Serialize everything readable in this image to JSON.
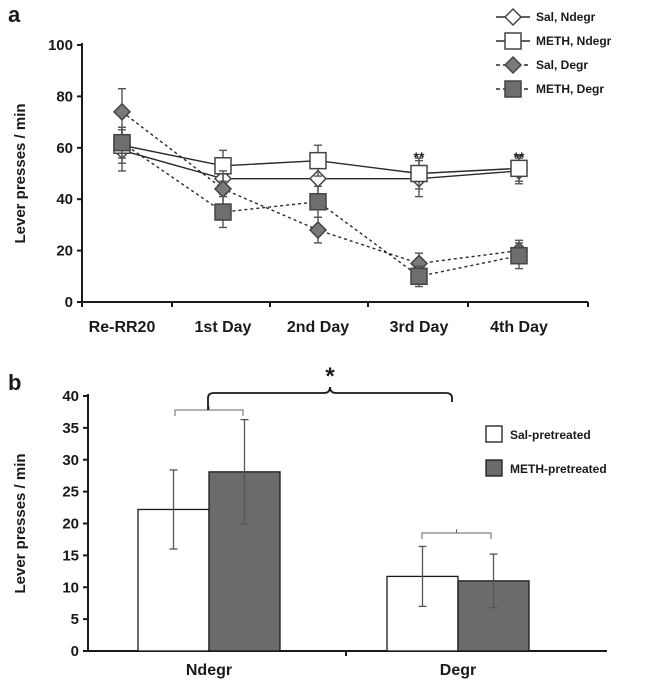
{
  "chart_data": [
    {
      "panel": "a",
      "type": "line",
      "ylabel": "Lever presses / min",
      "ylim": [
        0,
        100
      ],
      "yticks": [
        0,
        20,
        40,
        60,
        80,
        100
      ],
      "categories": [
        "Re-RR20",
        "1st Day",
        "2nd Day",
        "3rd Day",
        "4th Day"
      ],
      "legend_position": "top-right",
      "series": [
        {
          "name": "Sal, Ndegr",
          "marker": "diamond",
          "fill": "#ffffff",
          "line": "solid",
          "values": [
            59,
            48,
            48,
            48,
            51
          ],
          "errors": [
            8,
            6,
            6,
            7,
            5
          ]
        },
        {
          "name": "METH, Ndegr",
          "marker": "square",
          "fill": "#ffffff",
          "line": "solid",
          "values": [
            61,
            53,
            55,
            50,
            52
          ],
          "errors": [
            7,
            6,
            6,
            6,
            5
          ]
        },
        {
          "name": "Sal, Degr",
          "marker": "diamond",
          "fill": "#7a7a7a",
          "line": "dashed",
          "values": [
            74,
            44,
            28,
            15,
            20
          ],
          "errors": [
            9,
            7,
            5,
            4,
            4
          ]
        },
        {
          "name": "METH, Degr",
          "marker": "square",
          "fill": "#6e6e6e",
          "line": "dashed",
          "values": [
            62,
            35,
            39,
            10,
            18
          ],
          "errors": [
            6,
            6,
            6,
            4,
            5
          ]
        }
      ],
      "annotations": [
        {
          "category": "3rd Day",
          "text": "**"
        },
        {
          "category": "4th Day",
          "text": "**"
        }
      ]
    },
    {
      "panel": "b",
      "type": "bar",
      "ylabel": "Lever presses / min",
      "ylim": [
        0,
        40
      ],
      "yticks": [
        0,
        5,
        10,
        15,
        20,
        25,
        30,
        35,
        40
      ],
      "categories": [
        "Ndegr",
        "Degr"
      ],
      "legend_position": "right",
      "series": [
        {
          "name": "Sal-pretreated",
          "fill": "#ffffff",
          "values": [
            22.2,
            11.7
          ],
          "errors": [
            6.2,
            4.7
          ]
        },
        {
          "name": "METH-pretreated",
          "fill": "#6b6b6b",
          "values": [
            28.1,
            11.0
          ],
          "errors": [
            8.2,
            4.2
          ]
        }
      ],
      "annotations": [
        {
          "text": "*",
          "between": [
            "Ndegr",
            "Degr"
          ]
        }
      ]
    }
  ]
}
